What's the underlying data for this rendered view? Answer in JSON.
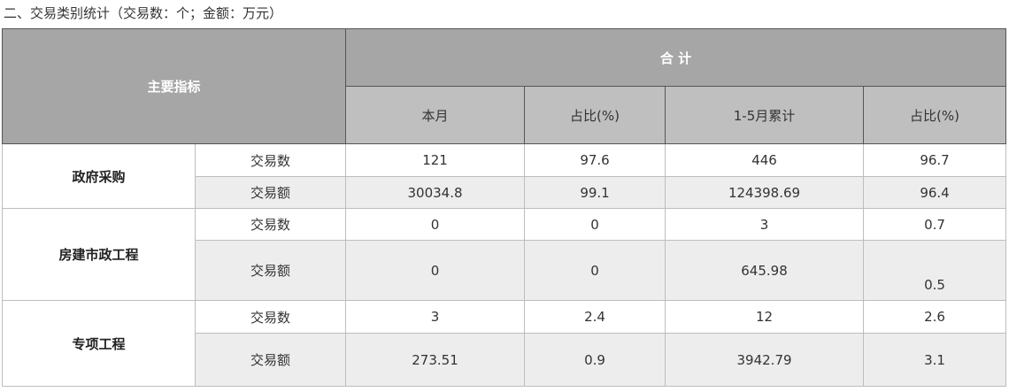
{
  "caption": "二、交易类别统计（交易数：个；金额：万元）",
  "header": {
    "main_indicator": "主要指标",
    "total": "合  计",
    "columns": [
      "本月",
      "占比(%)",
      "1-5月累计",
      "占比(%)"
    ]
  },
  "categories": [
    {
      "name": "政府采购",
      "rows": [
        {
          "metric": "交易数",
          "month": "121",
          "month_pct": "97.6",
          "cumulative": "446",
          "cumulative_pct": "96.7"
        },
        {
          "metric": "交易额",
          "month": "30034.8",
          "month_pct": "99.1",
          "cumulative": "124398.69",
          "cumulative_pct": "96.4"
        }
      ]
    },
    {
      "name": "房建市政工程",
      "rows": [
        {
          "metric": "交易数",
          "month": "0",
          "month_pct": "0",
          "cumulative": "3",
          "cumulative_pct": "0.7"
        },
        {
          "metric": "交易额",
          "month": "0",
          "month_pct": "0",
          "cumulative": "645.98",
          "cumulative_pct": "0.5"
        }
      ]
    },
    {
      "name": "专项工程",
      "rows": [
        {
          "metric": "交易数",
          "month": "3",
          "month_pct": "2.4",
          "cumulative": "12",
          "cumulative_pct": "2.6"
        },
        {
          "metric": "交易额",
          "month": "273.51",
          "month_pct": "0.9",
          "cumulative": "3942.79",
          "cumulative_pct": "3.1"
        }
      ]
    }
  ]
}
